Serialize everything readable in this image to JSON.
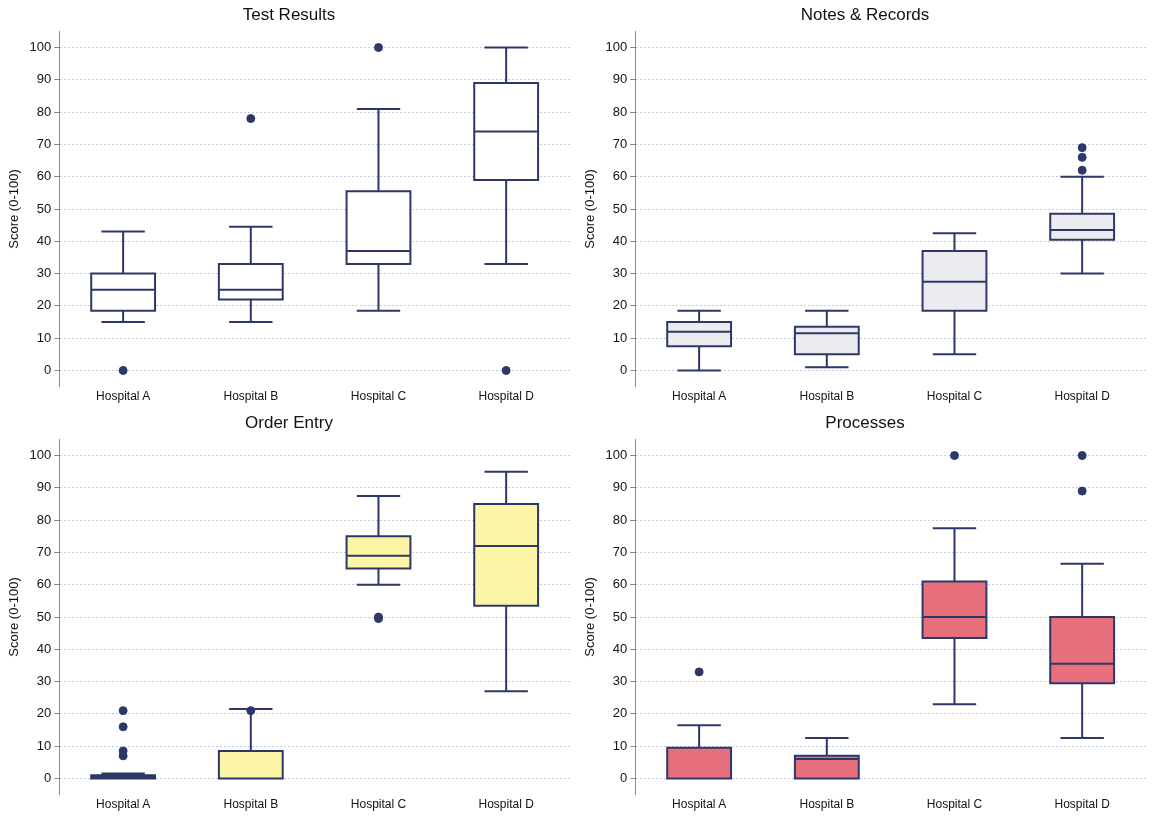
{
  "chart_data": [
    {
      "type": "box",
      "title": "Test Results",
      "ylabel": "Score (0-100)",
      "categories": [
        "Hospital A",
        "Hospital B",
        "Hospital C",
        "Hospital D"
      ],
      "color": "#ffffff",
      "ylim": [
        -5,
        105
      ],
      "yticks": [
        0,
        10,
        20,
        30,
        40,
        50,
        60,
        70,
        80,
        90,
        100
      ],
      "grid": "y",
      "legend": false,
      "boxes": [
        {
          "low": 15,
          "q1": 18.5,
          "median": 25,
          "q3": 30,
          "high": 43,
          "outliers": [
            0
          ]
        },
        {
          "low": 15,
          "q1": 22,
          "median": 25,
          "q3": 33,
          "high": 44.5,
          "outliers": [
            78
          ]
        },
        {
          "low": 18.5,
          "q1": 33,
          "median": 37,
          "q3": 55.5,
          "high": 81,
          "outliers": [
            100
          ]
        },
        {
          "low": 33,
          "q1": 59,
          "median": 74,
          "q3": 89,
          "high": 100,
          "outliers": [
            0
          ]
        }
      ]
    },
    {
      "type": "box",
      "title": "Notes & Records",
      "ylabel": "Score (0-100)",
      "categories": [
        "Hospital A",
        "Hospital B",
        "Hospital C",
        "Hospital D"
      ],
      "color": "#ececf0",
      "ylim": [
        -5,
        105
      ],
      "yticks": [
        0,
        10,
        20,
        30,
        40,
        50,
        60,
        70,
        80,
        90,
        100
      ],
      "grid": "y",
      "legend": false,
      "boxes": [
        {
          "low": 0,
          "q1": 7.5,
          "median": 12,
          "q3": 15,
          "high": 18.5
        },
        {
          "low": 1,
          "q1": 5,
          "median": 11.5,
          "q3": 13.5,
          "high": 18.5
        },
        {
          "low": 5,
          "q1": 18.5,
          "median": 27.5,
          "q3": 37,
          "high": 42.5
        },
        {
          "low": 30,
          "q1": 40.5,
          "median": 43.5,
          "q3": 48.5,
          "high": 60,
          "outliers": [
            62,
            66,
            69
          ]
        }
      ]
    },
    {
      "type": "box",
      "title": "Order Entry",
      "ylabel": "Score (0-100)",
      "categories": [
        "Hospital A",
        "Hospital B",
        "Hospital C",
        "Hospital D"
      ],
      "color": "#fdf5a6",
      "ylim": [
        -5,
        105
      ],
      "yticks": [
        0,
        10,
        20,
        30,
        40,
        50,
        60,
        70,
        80,
        90,
        100
      ],
      "grid": "y",
      "legend": false,
      "boxes": [
        {
          "low": 0,
          "q1": 0,
          "median": 0.5,
          "q3": 1,
          "high": 1.5,
          "outliers": [
            7,
            8.5,
            16,
            21
          ]
        },
        {
          "low": 0,
          "q1": 0,
          "median": 0,
          "q3": 8.5,
          "high": 21.5,
          "outliers": [
            21
          ]
        },
        {
          "low": 60,
          "q1": 65,
          "median": 69,
          "q3": 75,
          "high": 87.5,
          "outliers": [
            49.5,
            50
          ]
        },
        {
          "low": 27,
          "q1": 53.5,
          "median": 72,
          "q3": 85,
          "high": 95
        }
      ]
    },
    {
      "type": "box",
      "title": "Processes",
      "ylabel": "Score (0-100)",
      "categories": [
        "Hospital A",
        "Hospital B",
        "Hospital C",
        "Hospital D"
      ],
      "color": "#e8707c",
      "ylim": [
        -5,
        105
      ],
      "yticks": [
        0,
        10,
        20,
        30,
        40,
        50,
        60,
        70,
        80,
        90,
        100
      ],
      "grid": "y",
      "legend": false,
      "boxes": [
        {
          "low": 0,
          "q1": 0,
          "median": 0,
          "q3": 9.5,
          "high": 16.5,
          "outliers": [
            33
          ]
        },
        {
          "low": 0,
          "q1": 0,
          "median": 6,
          "q3": 7,
          "high": 12.5
        },
        {
          "low": 23,
          "q1": 43.5,
          "median": 50,
          "q3": 61,
          "high": 77.5,
          "outliers": [
            100
          ]
        },
        {
          "low": 12.5,
          "q1": 29.5,
          "median": 35.5,
          "q3": 50,
          "high": 66.5,
          "outliers": [
            89,
            100
          ]
        }
      ]
    }
  ]
}
